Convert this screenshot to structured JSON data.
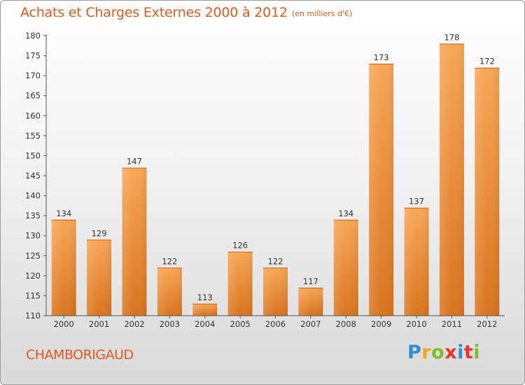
{
  "chart_data": {
    "type": "bar",
    "title": "Achats et Charges Externes 2000 à 2012",
    "subtitle": "(en milliers d'€)",
    "categories": [
      "2000",
      "2001",
      "2002",
      "2003",
      "2004",
      "2005",
      "2006",
      "2007",
      "2008",
      "2009",
      "2010",
      "2011",
      "2012"
    ],
    "values": [
      134,
      129,
      147,
      122,
      113,
      126,
      122,
      117,
      134,
      173,
      137,
      178,
      172
    ],
    "ylim": [
      110,
      180
    ],
    "yticks": [
      110,
      115,
      120,
      125,
      130,
      135,
      140,
      145,
      150,
      155,
      160,
      165,
      170,
      175,
      180
    ],
    "grid": false,
    "bar_color": "#f0923a"
  },
  "commune": "CHAMBORIGAUD",
  "logo": {
    "letters": [
      "P",
      "r",
      "o",
      "x",
      "i",
      "t",
      "i"
    ],
    "colors": [
      "#2f8fd6",
      "#f2a31b",
      "#7bbf2a",
      "#e8352b",
      "#2f8fd6",
      "#e8352b",
      "#7bbf2a"
    ]
  }
}
